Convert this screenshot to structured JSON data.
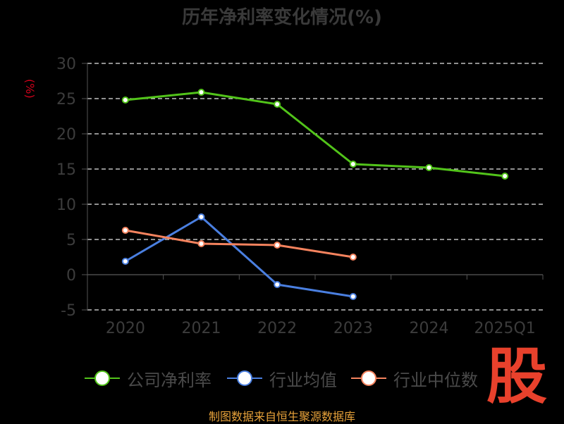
{
  "chart_data": {
    "type": "line",
    "title": "历年净利率变化情况(%)",
    "ylabel": "(%)",
    "categories": [
      "2020",
      "2021",
      "2022",
      "2023",
      "2024",
      "2025Q1"
    ],
    "ylim": [
      -5,
      30
    ],
    "yticks": [
      "30",
      "25",
      "20",
      "15",
      "10",
      "5",
      "0",
      "-5"
    ],
    "series": [
      {
        "name": "公司净利率",
        "color": "#52c41a",
        "values": [
          24.8,
          25.9,
          24.2,
          15.7,
          15.2,
          14.0
        ]
      },
      {
        "name": "行业均值",
        "color": "#4a7fe0",
        "values": [
          1.9,
          8.2,
          -1.4,
          -3.1,
          null,
          null
        ]
      },
      {
        "name": "行业中位数",
        "color": "#f5835e",
        "values": [
          6.3,
          4.4,
          4.2,
          2.5,
          null,
          null
        ]
      }
    ],
    "grid": true,
    "legend_position": "bottom"
  },
  "source": "制图数据来自恒生聚源数据库",
  "logo_text": "股"
}
